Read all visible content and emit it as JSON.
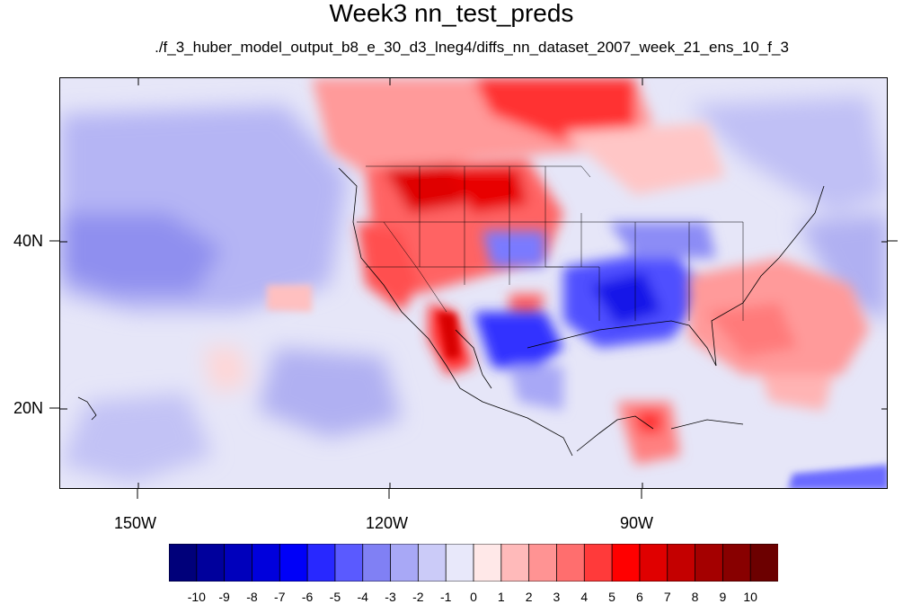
{
  "title": "Week3 nn_test_preds",
  "subtitle": "./f_3_huber_model_output_b8_e_30_d3_lneg4/diffs_nn_dataset_2007_week_21_ens_10_f_3",
  "map": {
    "projection": "cylindrical-equidistant",
    "lon_range": [
      -160,
      -62
    ],
    "lat_range": [
      11,
      60
    ],
    "x_tick_labels": [
      "150W",
      "120W",
      "90W"
    ],
    "y_tick_labels": [
      "40N",
      "20N"
    ],
    "features": [
      "coastlines",
      "us-state-boundaries",
      "country-borders"
    ],
    "field": "temperature difference",
    "colors": {
      "strong_positive": "#e00000",
      "strong_negative": "#0000e0",
      "neutral": "#e6e6f8"
    }
  },
  "colorbar": {
    "labels": [
      "-10",
      "-9",
      "-8",
      "-7",
      "-6",
      "-5",
      "-4",
      "-3",
      "-2",
      "-1",
      "0",
      "1",
      "2",
      "3",
      "4",
      "5",
      "6",
      "7",
      "8",
      "9",
      "10"
    ],
    "colors": [
      "#00007a",
      "#00009c",
      "#0000bc",
      "#0000dc",
      "#0000f8",
      "#2828ff",
      "#5a5aff",
      "#8080f4",
      "#a8a8f6",
      "#cbcbf8",
      "#e8e8fa",
      "#ffe8e8",
      "#ffbaba",
      "#ff9393",
      "#ff6e6e",
      "#ff3a3a",
      "#ff0000",
      "#e00000",
      "#c40000",
      "#a40000",
      "#880000",
      "#6c0000"
    ]
  }
}
